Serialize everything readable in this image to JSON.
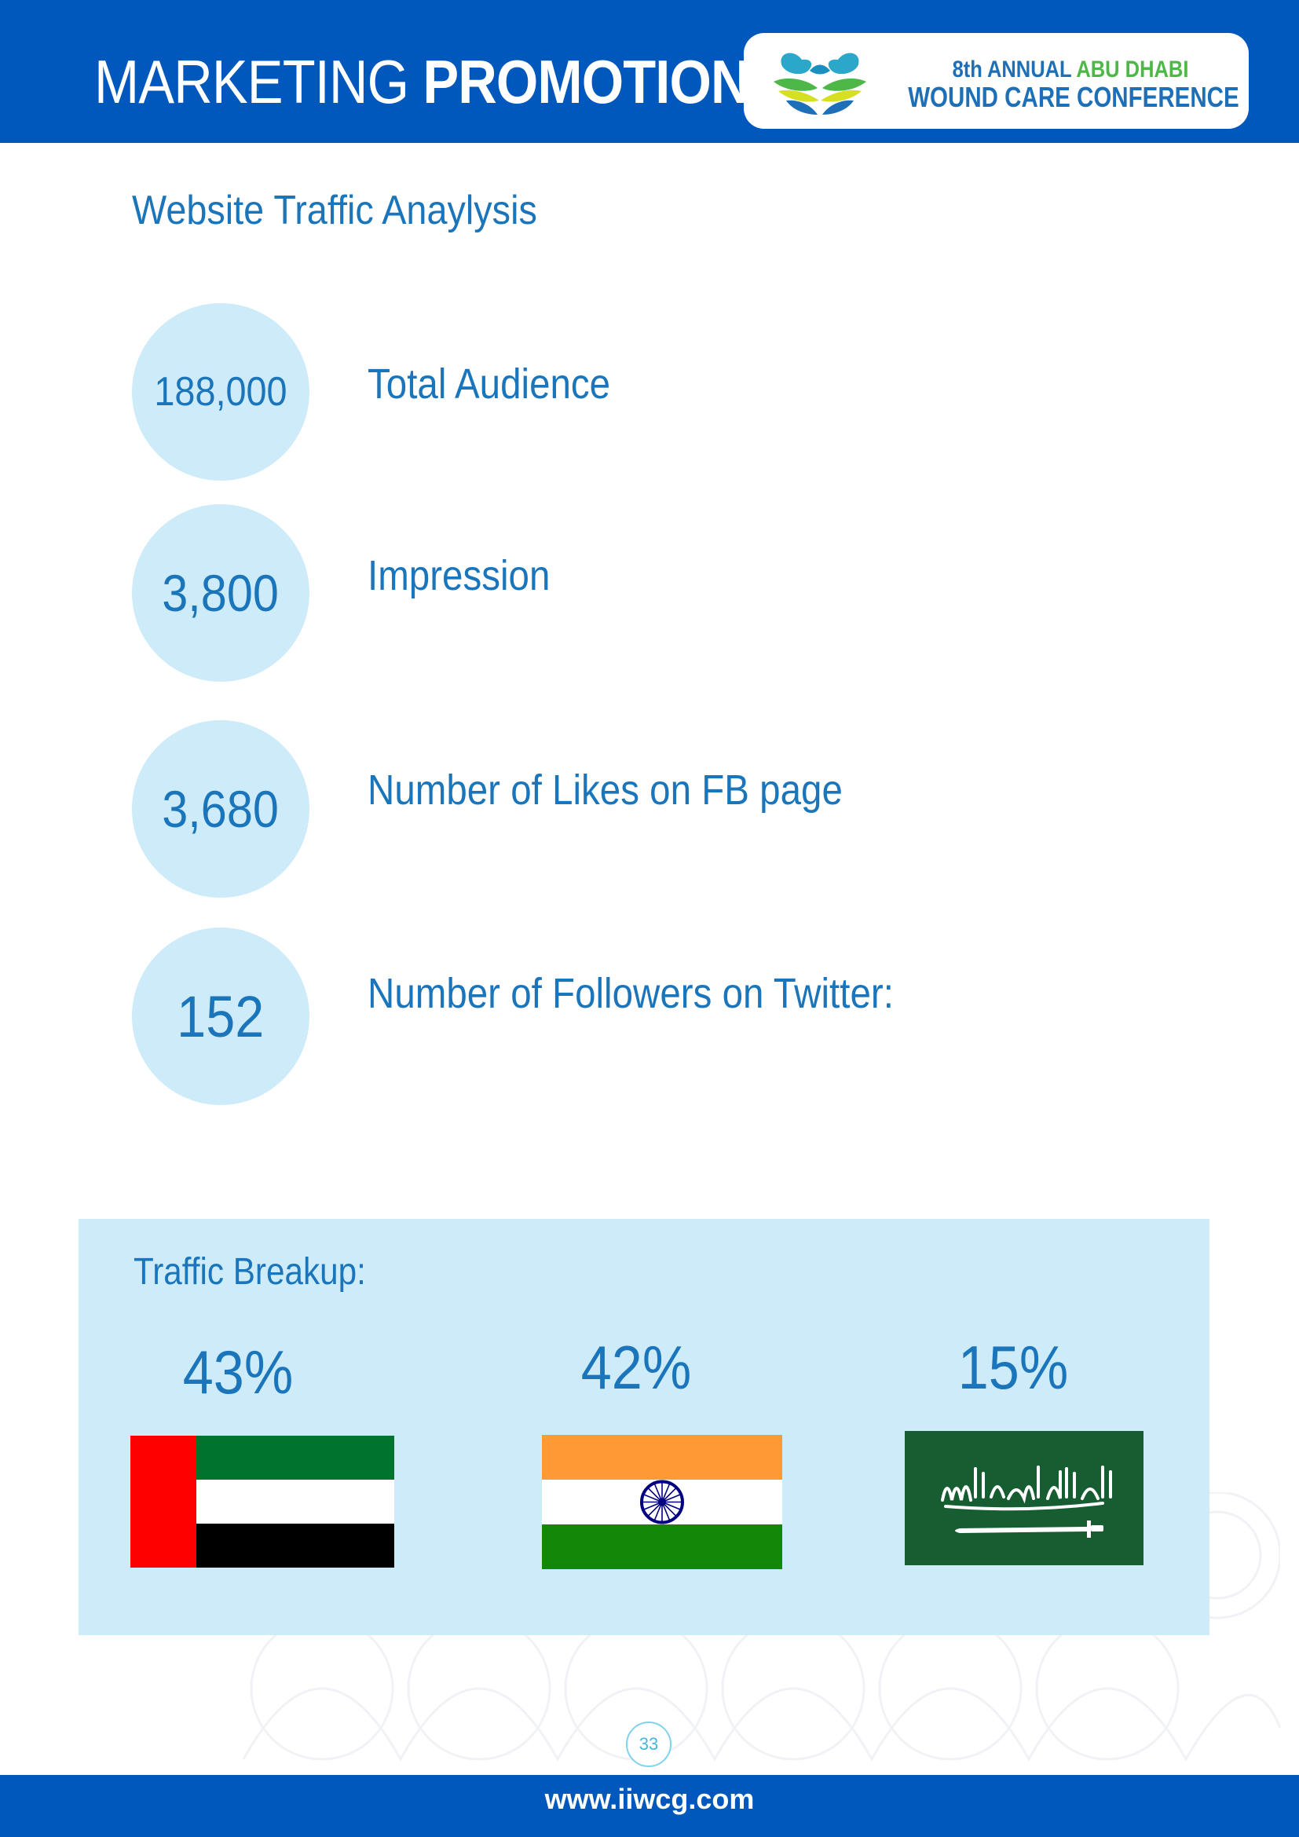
{
  "header": {
    "title_light": "MARKETING",
    "title_bold": "PROMOTION",
    "logo": {
      "line1_part1": "8th ANNUAL",
      "line1_part2": "ABU DHABI",
      "line2": "WOUND CARE CONFERENCE"
    }
  },
  "section_title": "Website Traffic Anaylysis",
  "stats": [
    {
      "value": "188,000",
      "label": "Total Audience"
    },
    {
      "value": "3,800",
      "label": "Impression"
    },
    {
      "value": "3,680",
      "label": "Number of Likes on FB page"
    },
    {
      "value": "152",
      "label": "Number of Followers on Twitter:"
    }
  ],
  "traffic_breakup": {
    "title": "Traffic Breakup:",
    "items": [
      {
        "percent": "43%",
        "flag_icon": "uae-flag-icon"
      },
      {
        "percent": "42%",
        "flag_icon": "india-flag-icon"
      },
      {
        "percent": "15%",
        "flag_icon": "saudi-arabia-flag-icon"
      }
    ]
  },
  "footer": {
    "page_number": "33",
    "url": "www.iiwcg.com"
  },
  "colors": {
    "brand_blue": "#0057bc",
    "text_blue": "#1b75bb",
    "circle_fill": "#cdebf9",
    "logo_green": "#4db848"
  }
}
